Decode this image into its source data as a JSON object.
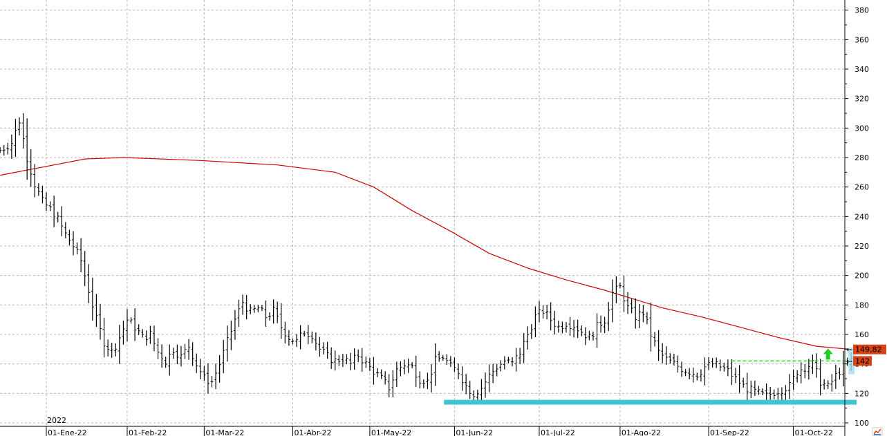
{
  "chart_data": {
    "type": "ohlc",
    "title": "",
    "xlabel": "",
    "ylabel": "",
    "ylim": [
      100,
      385
    ],
    "y_ticks": [
      100,
      120,
      140,
      160,
      180,
      200,
      220,
      240,
      260,
      280,
      300,
      320,
      340,
      360,
      380
    ],
    "y_tick_labels": [
      "100",
      "120",
      "140",
      "160",
      "180",
      "200",
      "220",
      "240",
      "260",
      "280",
      "300",
      "320",
      "340",
      "360",
      "380"
    ],
    "year_label": "2022",
    "x_ticks": [
      {
        "label": "01-Ene-22",
        "index": 0
      },
      {
        "label": "01-Feb-22",
        "index": 21
      },
      {
        "label": "01-Mar-22",
        "index": 41
      },
      {
        "label": "01-Abr-22",
        "index": 64
      },
      {
        "label": "01-May-22",
        "index": 84
      },
      {
        "label": "01-Jun-22",
        "index": 106
      },
      {
        "label": "01-Jul-22",
        "index": 128
      },
      {
        "label": "01-Ago-22",
        "index": 149
      },
      {
        "label": "01-Sep-22",
        "index": 172
      },
      {
        "label": "01-Oct-22",
        "index": 194
      }
    ],
    "grid": true,
    "pre_start_bars": 12,
    "last_bar_index": 209,
    "close_anchors": [
      [
        -12,
        285
      ],
      [
        -9,
        290
      ],
      [
        -7,
        305
      ],
      [
        -5,
        280
      ],
      [
        -3,
        262
      ],
      [
        -1,
        250
      ],
      [
        1,
        245
      ],
      [
        3,
        238
      ],
      [
        5,
        228
      ],
      [
        7,
        220
      ],
      [
        9,
        210
      ],
      [
        11,
        190
      ],
      [
        13,
        170
      ],
      [
        15,
        155
      ],
      [
        17,
        148
      ],
      [
        19,
        158
      ],
      [
        21,
        170
      ],
      [
        23,
        165
      ],
      [
        25,
        158
      ],
      [
        27,
        160
      ],
      [
        29,
        148
      ],
      [
        31,
        142
      ],
      [
        33,
        150
      ],
      [
        35,
        145
      ],
      [
        37,
        152
      ],
      [
        39,
        140
      ],
      [
        41,
        130
      ],
      [
        43,
        128
      ],
      [
        45,
        140
      ],
      [
        47,
        155
      ],
      [
        49,
        170
      ],
      [
        51,
        182
      ],
      [
        53,
        175
      ],
      [
        55,
        178
      ],
      [
        57,
        172
      ],
      [
        59,
        176
      ],
      [
        61,
        165
      ],
      [
        63,
        158
      ],
      [
        65,
        155
      ],
      [
        67,
        162
      ],
      [
        69,
        160
      ],
      [
        71,
        150
      ],
      [
        73,
        145
      ],
      [
        75,
        142
      ],
      [
        77,
        144
      ],
      [
        79,
        140
      ],
      [
        81,
        146
      ],
      [
        83,
        140
      ],
      [
        85,
        135
      ],
      [
        87,
        130
      ],
      [
        89,
        124
      ],
      [
        91,
        136
      ],
      [
        93,
        140
      ],
      [
        95,
        138
      ],
      [
        97,
        130
      ],
      [
        99,
        128
      ],
      [
        101,
        142
      ],
      [
        103,
        145
      ],
      [
        105,
        138
      ],
      [
        107,
        135
      ],
      [
        109,
        125
      ],
      [
        111,
        120
      ],
      [
        113,
        124
      ],
      [
        115,
        132
      ],
      [
        117,
        138
      ],
      [
        119,
        142
      ],
      [
        121,
        140
      ],
      [
        123,
        148
      ],
      [
        125,
        160
      ],
      [
        127,
        172
      ],
      [
        129,
        176
      ],
      [
        131,
        170
      ],
      [
        133,
        165
      ],
      [
        135,
        168
      ],
      [
        137,
        166
      ],
      [
        139,
        162
      ],
      [
        141,
        158
      ],
      [
        143,
        165
      ],
      [
        145,
        170
      ],
      [
        147,
        188
      ],
      [
        149,
        192
      ],
      [
        151,
        178
      ],
      [
        153,
        172
      ],
      [
        155,
        175
      ],
      [
        157,
        160
      ],
      [
        159,
        148
      ],
      [
        161,
        143
      ],
      [
        163,
        140
      ],
      [
        165,
        137
      ],
      [
        167,
        135
      ],
      [
        169,
        133
      ],
      [
        171,
        138
      ],
      [
        173,
        140
      ],
      [
        175,
        138
      ],
      [
        177,
        135
      ],
      [
        179,
        130
      ],
      [
        181,
        125
      ],
      [
        183,
        122
      ],
      [
        185,
        120
      ],
      [
        187,
        118
      ],
      [
        189,
        121
      ],
      [
        191,
        123
      ],
      [
        193,
        125
      ],
      [
        195,
        135
      ],
      [
        197,
        138
      ],
      [
        199,
        140
      ],
      [
        201,
        128
      ],
      [
        203,
        124
      ],
      [
        205,
        132
      ],
      [
        207,
        138
      ],
      [
        209,
        142
      ]
    ],
    "moving_average": {
      "color": "#cc0000",
      "points": [
        [
          -12,
          268
        ],
        [
          0,
          274
        ],
        [
          10,
          279
        ],
        [
          20,
          280
        ],
        [
          40,
          278
        ],
        [
          60,
          275
        ],
        [
          75,
          270
        ],
        [
          85,
          260
        ],
        [
          95,
          244
        ],
        [
          105,
          230
        ],
        [
          115,
          215
        ],
        [
          125,
          205
        ],
        [
          135,
          197
        ],
        [
          145,
          190
        ],
        [
          160,
          178
        ],
        [
          170,
          172
        ],
        [
          180,
          165
        ],
        [
          190,
          158
        ],
        [
          200,
          152
        ],
        [
          209,
          149.82
        ]
      ]
    },
    "support_line": {
      "value": 114,
      "from_index": 104,
      "to_index": 209,
      "color": "#3ec7d2"
    },
    "resistance_line": {
      "value": 142,
      "from_index": 178,
      "to_index": 209,
      "color": "#22cc22"
    },
    "breakout_arrow": {
      "index": 203,
      "value": 142,
      "color": "#22cc22"
    },
    "last_value_markers": [
      {
        "value": 149.82,
        "label": "149,82",
        "color": "#d84315"
      },
      {
        "value": 142,
        "label": "142",
        "color": "#d84315"
      }
    ],
    "marker_prefix": "←",
    "corner_icon": "chart-logo-icon"
  }
}
